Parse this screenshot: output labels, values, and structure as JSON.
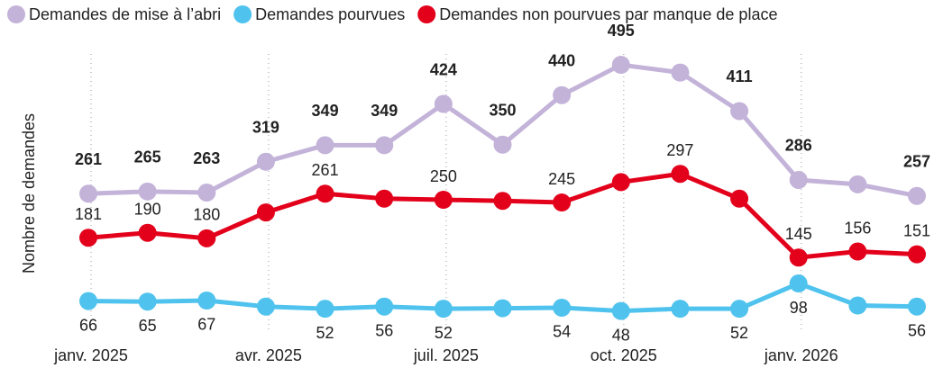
{
  "chart_data": {
    "type": "line",
    "y_label": "Nombre de demandes",
    "categories": [
      "janv. 2025",
      null,
      null,
      "avr. 2025",
      null,
      null,
      "juil. 2025",
      null,
      null,
      "oct. 2025",
      null,
      null,
      "janv. 2026",
      null,
      null
    ],
    "series": [
      {
        "name": "Demandes de mise à l’abri",
        "color": "#c3b3d9",
        "values": [
          261,
          265,
          263,
          319,
          349,
          349,
          424,
          350,
          440,
          495,
          481,
          411,
          286,
          278,
          257
        ],
        "value_labels": [
          "261",
          "265",
          "263",
          "319",
          "349",
          "349",
          "424",
          "350",
          "440",
          "495",
          null,
          "411",
          "286",
          null,
          "257"
        ]
      },
      {
        "name": "Demandes pourvues",
        "color": "#4fc3ee",
        "values": [
          66,
          65,
          67,
          56,
          52,
          56,
          52,
          53,
          54,
          48,
          52,
          52,
          98,
          58,
          56
        ],
        "value_labels": [
          "66",
          "65",
          "67",
          null,
          "52",
          "56",
          "52",
          null,
          "54",
          "48",
          null,
          "52",
          "98",
          null,
          "56"
        ]
      },
      {
        "name": "Demandes non pourvues par manque de place",
        "color": "#e3001b",
        "values": [
          181,
          190,
          180,
          227,
          261,
          252,
          250,
          248,
          245,
          282,
          297,
          252,
          145,
          156,
          151
        ],
        "value_labels": [
          "181",
          "190",
          "180",
          null,
          "261",
          null,
          "250",
          null,
          "245",
          null,
          "297",
          null,
          "145",
          "156",
          "151"
        ]
      }
    ],
    "ylim": [
      0,
      500
    ],
    "grid": true,
    "legend": "top"
  }
}
